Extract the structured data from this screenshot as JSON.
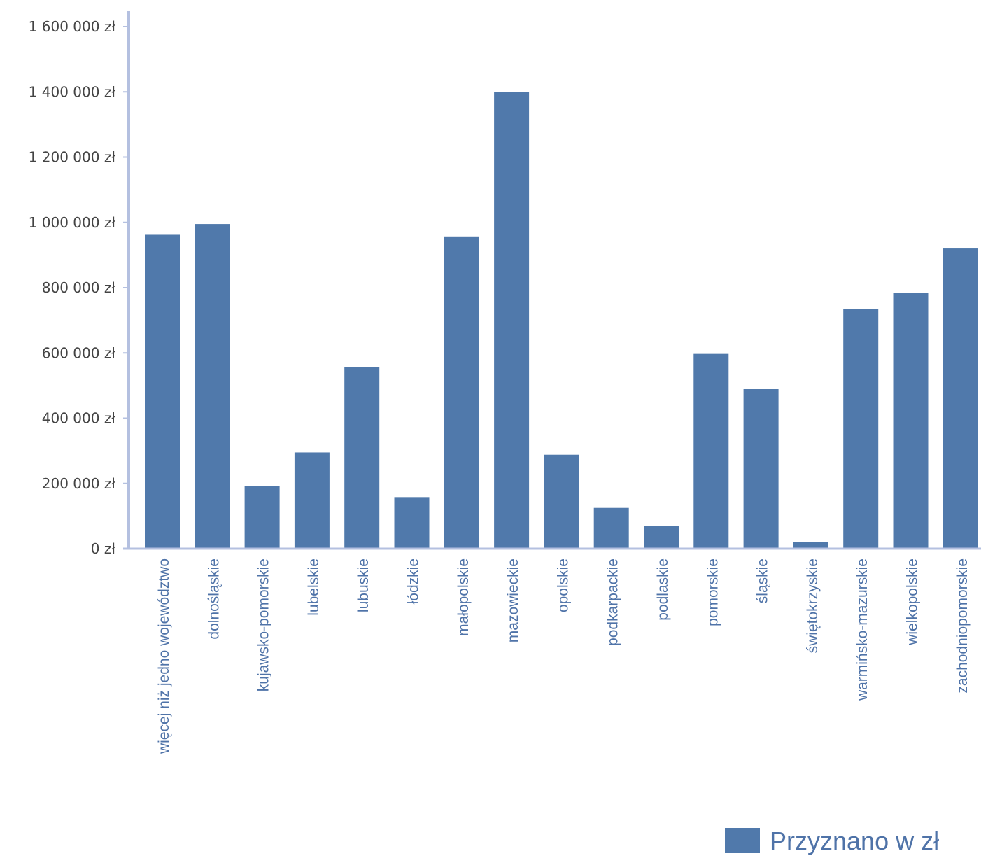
{
  "chart_data": {
    "type": "bar",
    "title": "",
    "xlabel": "",
    "ylabel": "",
    "ylim": [
      0,
      1600000
    ],
    "yticks": [
      0,
      200000,
      400000,
      600000,
      800000,
      1000000,
      1200000,
      1400000,
      1600000
    ],
    "ytick_labels": [
      "0 zł",
      "200 000 zł",
      "400 000 zł",
      "600 000 zł",
      "800 000 zł",
      "1 000 000 zł",
      "1 200 000 zł",
      "1 400 000 zł",
      "1 600 000 zł"
    ],
    "categories": [
      "więcej niż jedno województwo",
      "dolnośląskie",
      "kujawsko-pomorskie",
      "lubelskie",
      "lubuskie",
      "łódzkie",
      "małopolskie",
      "mazowieckie",
      "opolskie",
      "podkarpackie",
      "podlaskie",
      "pomorskie",
      "śląskie",
      "świętokrzyskie",
      "warmińsko-mazurskie",
      "wielkopolskie",
      "zachodniopomorskie"
    ],
    "series": [
      {
        "name": "Przyznano w zł",
        "color": "#5079ab",
        "values": [
          962000,
          995000,
          192000,
          295000,
          557000,
          158000,
          957000,
          1400000,
          288000,
          125000,
          70000,
          597000,
          489000,
          20000,
          735000,
          783000,
          920000
        ]
      }
    ],
    "legend_position": "bottom-right",
    "grid": false,
    "axis_color": "#b4c0e0",
    "axis_label_color": "#444444",
    "category_label_color": "#4f73a8"
  }
}
